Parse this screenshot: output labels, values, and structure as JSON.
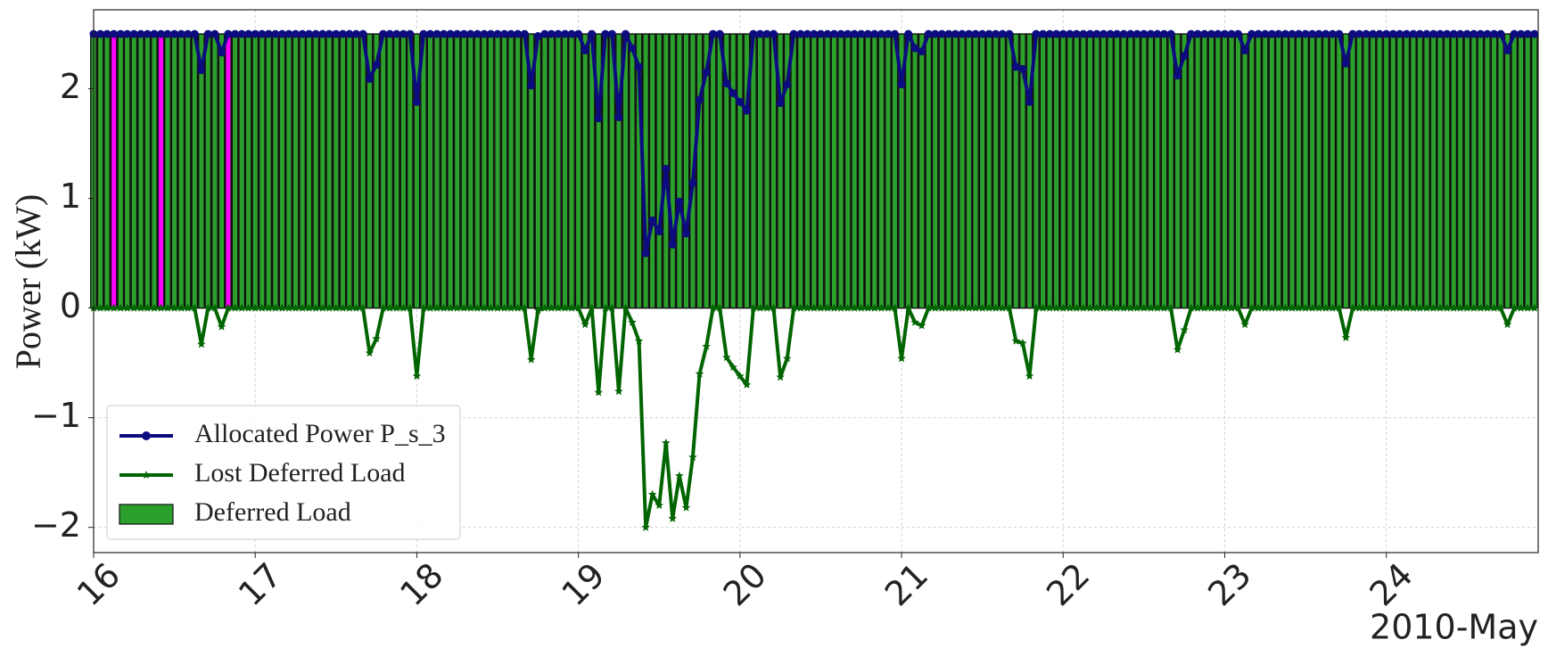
{
  "chart_data": {
    "type": "bar",
    "ylabel": "Power (kW)",
    "xlabel": "2010-May",
    "xlim": [
      16,
      24.94
    ],
    "xticks": [
      16,
      17,
      18,
      19,
      20,
      21,
      22,
      23,
      24
    ],
    "ylim": [
      -2.23,
      2.72
    ],
    "yticks": [
      {
        "value": -2,
        "label": "−2"
      },
      {
        "value": -1,
        "label": "−1"
      },
      0,
      1,
      2
    ],
    "grid": true,
    "legend": "lower left",
    "x": [
      16,
      16.042,
      16.083,
      16.125,
      16.167,
      16.208,
      16.25,
      16.292,
      16.333,
      16.375,
      16.417,
      16.458,
      16.5,
      16.542,
      16.583,
      16.625,
      16.667,
      16.708,
      16.75,
      16.792,
      16.833,
      16.875,
      16.917,
      16.958,
      17,
      17.042,
      17.083,
      17.125,
      17.167,
      17.208,
      17.25,
      17.292,
      17.333,
      17.375,
      17.417,
      17.458,
      17.5,
      17.542,
      17.583,
      17.625,
      17.667,
      17.708,
      17.75,
      17.792,
      17.833,
      17.875,
      17.917,
      17.958,
      18,
      18.042,
      18.083,
      18.125,
      18.167,
      18.208,
      18.25,
      18.292,
      18.333,
      18.375,
      18.417,
      18.458,
      18.5,
      18.542,
      18.583,
      18.625,
      18.667,
      18.708,
      18.75,
      18.792,
      18.833,
      18.875,
      18.917,
      18.958,
      19,
      19.042,
      19.083,
      19.125,
      19.167,
      19.208,
      19.25,
      19.292,
      19.333,
      19.375,
      19.417,
      19.458,
      19.5,
      19.542,
      19.583,
      19.625,
      19.667,
      19.708,
      19.75,
      19.792,
      19.833,
      19.875,
      19.917,
      19.958,
      20,
      20.042,
      20.083,
      20.125,
      20.167,
      20.208,
      20.25,
      20.292,
      20.333,
      20.375,
      20.417,
      20.458,
      20.5,
      20.542,
      20.583,
      20.625,
      20.667,
      20.708,
      20.75,
      20.792,
      20.833,
      20.875,
      20.917,
      20.958,
      21,
      21.042,
      21.083,
      21.125,
      21.167,
      21.208,
      21.25,
      21.292,
      21.333,
      21.375,
      21.417,
      21.458,
      21.5,
      21.542,
      21.583,
      21.625,
      21.667,
      21.708,
      21.75,
      21.792,
      21.833,
      21.875,
      21.917,
      21.958,
      22,
      22.042,
      22.083,
      22.125,
      22.167,
      22.208,
      22.25,
      22.292,
      22.333,
      22.375,
      22.417,
      22.458,
      22.5,
      22.542,
      22.583,
      22.625,
      22.667,
      22.708,
      22.75,
      22.792,
      22.833,
      22.875,
      22.917,
      22.958,
      23,
      23.042,
      23.083,
      23.125,
      23.167,
      23.208,
      23.25,
      23.292,
      23.333,
      23.375,
      23.417,
      23.458,
      23.5,
      23.542,
      23.583,
      23.625,
      23.667,
      23.708,
      23.75,
      23.792,
      23.833,
      23.875,
      23.917,
      23.958,
      24,
      24.042,
      24.083,
      24.125,
      24.167,
      24.208,
      24.25,
      24.292,
      24.333,
      24.375,
      24.417,
      24.458,
      24.5,
      24.542,
      24.583,
      24.625,
      24.667,
      24.708,
      24.75,
      24.792,
      24.833,
      24.875,
      24.917
    ],
    "series": [
      {
        "name": "Allocated Power P_s_3",
        "type": "line",
        "marker": "circle",
        "color": "#0c0c80",
        "values": [
          2.5,
          2.5,
          2.5,
          2.5,
          2.5,
          2.5,
          2.5,
          2.5,
          2.5,
          2.5,
          2.5,
          2.5,
          2.5,
          2.5,
          2.5,
          2.5,
          2.17,
          2.5,
          2.5,
          2.33,
          2.5,
          2.5,
          2.5,
          2.5,
          2.5,
          2.5,
          2.5,
          2.5,
          2.5,
          2.5,
          2.5,
          2.5,
          2.5,
          2.5,
          2.5,
          2.5,
          2.5,
          2.5,
          2.5,
          2.5,
          2.5,
          2.09,
          2.22,
          2.5,
          2.5,
          2.5,
          2.5,
          2.5,
          1.88,
          2.5,
          2.5,
          2.5,
          2.5,
          2.5,
          2.5,
          2.5,
          2.5,
          2.5,
          2.5,
          2.5,
          2.5,
          2.5,
          2.5,
          2.5,
          2.5,
          2.03,
          2.48,
          2.5,
          2.5,
          2.5,
          2.5,
          2.5,
          2.5,
          2.35,
          2.5,
          1.73,
          2.5,
          2.5,
          1.74,
          2.5,
          2.37,
          2.2,
          0.5,
          0.8,
          0.7,
          1.27,
          0.58,
          0.97,
          0.68,
          1.14,
          1.9,
          2.15,
          2.5,
          2.5,
          2.05,
          1.96,
          1.88,
          1.8,
          2.5,
          2.5,
          2.5,
          2.5,
          1.87,
          2.04,
          2.5,
          2.5,
          2.5,
          2.5,
          2.5,
          2.5,
          2.5,
          2.5,
          2.5,
          2.5,
          2.5,
          2.5,
          2.5,
          2.5,
          2.5,
          2.5,
          2.04,
          2.5,
          2.37,
          2.34,
          2.5,
          2.5,
          2.5,
          2.5,
          2.5,
          2.5,
          2.5,
          2.5,
          2.5,
          2.5,
          2.5,
          2.5,
          2.5,
          2.2,
          2.18,
          1.88,
          2.5,
          2.5,
          2.5,
          2.5,
          2.5,
          2.5,
          2.5,
          2.5,
          2.5,
          2.5,
          2.5,
          2.5,
          2.5,
          2.5,
          2.5,
          2.5,
          2.5,
          2.5,
          2.5,
          2.5,
          2.5,
          2.12,
          2.3,
          2.5,
          2.5,
          2.5,
          2.5,
          2.5,
          2.5,
          2.5,
          2.5,
          2.35,
          2.5,
          2.5,
          2.5,
          2.5,
          2.5,
          2.5,
          2.5,
          2.5,
          2.5,
          2.5,
          2.5,
          2.5,
          2.5,
          2.5,
          2.23,
          2.5,
          2.5,
          2.5,
          2.5,
          2.5,
          2.5,
          2.5,
          2.5,
          2.5,
          2.5,
          2.5,
          2.5,
          2.5,
          2.5,
          2.5,
          2.5,
          2.5,
          2.5,
          2.5,
          2.5,
          2.5,
          2.5,
          2.5,
          2.35,
          2.5,
          2.5,
          2.5,
          2.5
        ]
      },
      {
        "name": "Lost Deferred Load",
        "type": "line",
        "marker": "star",
        "color": "#006400",
        "values": [
          0,
          0,
          0,
          0,
          0,
          0,
          0,
          0,
          0,
          0,
          0,
          0,
          0,
          0,
          0,
          0,
          -0.33,
          0,
          0,
          -0.17,
          0,
          0,
          0,
          0,
          0,
          0,
          0,
          0,
          0,
          0,
          0,
          0,
          0,
          0,
          0,
          0,
          0,
          0,
          0,
          0,
          0,
          -0.41,
          -0.28,
          0,
          0,
          0,
          0,
          0,
          -0.62,
          0,
          0,
          0,
          0,
          0,
          0,
          0,
          0,
          0,
          0,
          0,
          0,
          0,
          0,
          0,
          0,
          -0.47,
          -0.02,
          0,
          0,
          0,
          0,
          0,
          0,
          -0.15,
          0,
          -0.77,
          0,
          0,
          -0.76,
          0,
          -0.13,
          -0.3,
          -2.0,
          -1.7,
          -1.8,
          -1.23,
          -1.92,
          -1.53,
          -1.82,
          -1.36,
          -0.6,
          -0.35,
          0,
          0,
          -0.45,
          -0.54,
          -0.62,
          -0.7,
          0,
          0,
          0,
          0,
          -0.63,
          -0.46,
          0,
          0,
          0,
          0,
          0,
          0,
          0,
          0,
          0,
          0,
          0,
          0,
          0,
          0,
          0,
          0,
          -0.46,
          0,
          -0.13,
          -0.16,
          0,
          0,
          0,
          0,
          0,
          0,
          0,
          0,
          0,
          0,
          0,
          0,
          0,
          -0.3,
          -0.32,
          -0.62,
          0,
          0,
          0,
          0,
          0,
          0,
          0,
          0,
          0,
          0,
          0,
          0,
          0,
          0,
          0,
          0,
          0,
          0,
          0,
          0,
          0,
          -0.38,
          -0.2,
          0,
          0,
          0,
          0,
          0,
          0,
          0,
          0,
          -0.15,
          0,
          0,
          0,
          0,
          0,
          0,
          0,
          0,
          0,
          0,
          0,
          0,
          0,
          0,
          -0.27,
          0,
          0,
          0,
          0,
          0,
          0,
          0,
          0,
          0,
          0,
          0,
          0,
          0,
          0,
          0,
          0,
          0,
          0,
          0,
          0,
          0,
          0,
          0,
          -0.15,
          0,
          0,
          0,
          0
        ]
      },
      {
        "name": "Deferred Load",
        "type": "bar",
        "color": "#2ca02c",
        "values": [
          2.5,
          2.5,
          2.5,
          2.5,
          2.5,
          2.5,
          2.5,
          2.5,
          2.5,
          2.5,
          2.5,
          2.5,
          2.5,
          2.5,
          2.5,
          2.5,
          2.5,
          2.5,
          2.5,
          2.5,
          2.5,
          2.5,
          2.5,
          2.5,
          2.5,
          2.5,
          2.5,
          2.5,
          2.5,
          2.5,
          2.5,
          2.5,
          2.5,
          2.5,
          2.5,
          2.5,
          2.5,
          2.5,
          2.5,
          2.5,
          2.5,
          2.5,
          2.5,
          2.5,
          2.5,
          2.5,
          2.5,
          2.5,
          2.5,
          2.5,
          2.5,
          2.5,
          2.5,
          2.5,
          2.5,
          2.5,
          2.5,
          2.5,
          2.5,
          2.5,
          2.5,
          2.5,
          2.5,
          2.5,
          2.5,
          2.5,
          2.5,
          2.5,
          2.5,
          2.5,
          2.5,
          2.5,
          2.5,
          2.5,
          2.5,
          2.5,
          2.5,
          2.5,
          2.5,
          2.5,
          2.5,
          2.5,
          2.5,
          2.5,
          2.5,
          2.5,
          2.5,
          2.5,
          2.5,
          2.5,
          2.5,
          2.5,
          2.5,
          2.5,
          2.5,
          2.5,
          2.5,
          2.5,
          2.5,
          2.5,
          2.5,
          2.5,
          2.5,
          2.5,
          2.5,
          2.5,
          2.5,
          2.5,
          2.5,
          2.5,
          2.5,
          2.5,
          2.5,
          2.5,
          2.5,
          2.5,
          2.5,
          2.5,
          2.5,
          2.5,
          2.5,
          2.5,
          2.5,
          2.5,
          2.5,
          2.5,
          2.5,
          2.5,
          2.5,
          2.5,
          2.5,
          2.5,
          2.5,
          2.5,
          2.5,
          2.5,
          2.5,
          2.5,
          2.5,
          2.5,
          2.5,
          2.5,
          2.5,
          2.5,
          2.5,
          2.5,
          2.5,
          2.5,
          2.5,
          2.5,
          2.5,
          2.5,
          2.5,
          2.5,
          2.5,
          2.5,
          2.5,
          2.5,
          2.5,
          2.5,
          2.5,
          2.5,
          2.5,
          2.5,
          2.5,
          2.5,
          2.5,
          2.5,
          2.5,
          2.5,
          2.5,
          2.5,
          2.5,
          2.5,
          2.5,
          2.5,
          2.5,
          2.5,
          2.5,
          2.5,
          2.5,
          2.5,
          2.5,
          2.5,
          2.5,
          2.5,
          2.5,
          2.5,
          2.5,
          2.5,
          2.5,
          2.5,
          2.5,
          2.5,
          2.5,
          2.5,
          2.5,
          2.5,
          2.5,
          2.5,
          2.5,
          2.5,
          2.5,
          2.5,
          2.5,
          2.5,
          2.5,
          2.5,
          2.5,
          2.5,
          2.5,
          2.5,
          2.5,
          2.5,
          2.5
        ]
      },
      {
        "type": "bar",
        "color": "#ff00ff",
        "x": [
          16.125,
          16.417,
          16.833
        ],
        "values": [
          2.5,
          2.5,
          2.5
        ]
      }
    ]
  }
}
